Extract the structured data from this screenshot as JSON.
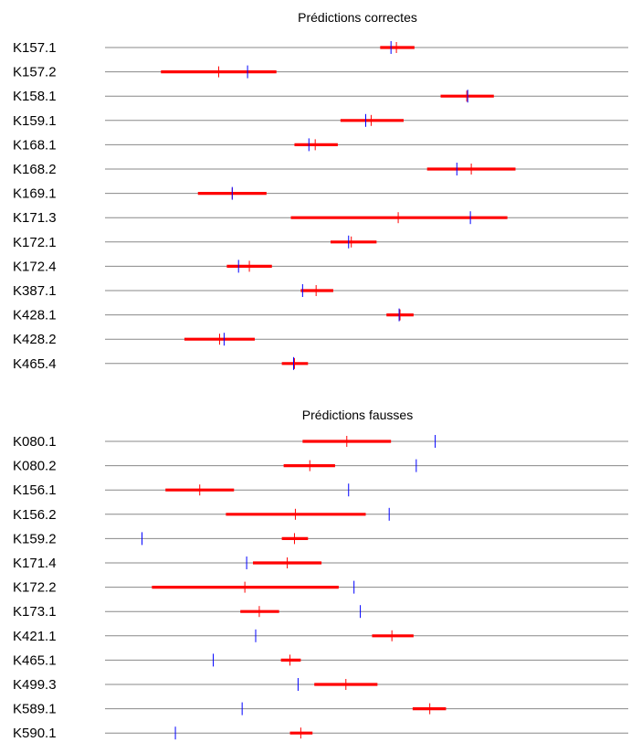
{
  "colors": {
    "interval": "#ff0000",
    "estimate": "#ff0000",
    "observed": "#0000ff",
    "rule": "#888888"
  },
  "chart_data": [
    {
      "type": "interval",
      "title": "Prédictions correctes",
      "xlim": [
        0,
        580
      ],
      "rows": [
        {
          "label": "K157.1",
          "low": 305,
          "high": 343,
          "estimate": 323,
          "observed": 317
        },
        {
          "label": "K157.2",
          "low": 62,
          "high": 190,
          "estimate": 126,
          "observed": 158
        },
        {
          "label": "K158.1",
          "low": 372,
          "high": 431,
          "estimate": 401,
          "observed": 402
        },
        {
          "label": "K159.1",
          "low": 261,
          "high": 331,
          "estimate": 295,
          "observed": 289
        },
        {
          "label": "K168.1",
          "low": 210,
          "high": 258,
          "estimate": 233,
          "observed": 226
        },
        {
          "label": "K168.2",
          "low": 357,
          "high": 455,
          "estimate": 406,
          "observed": 390
        },
        {
          "label": "K169.1",
          "low": 103,
          "high": 179,
          "estimate": 141,
          "observed": 141
        },
        {
          "label": "K171.3",
          "low": 206,
          "high": 446,
          "estimate": 325,
          "observed": 405
        },
        {
          "label": "K172.1",
          "low": 250,
          "high": 301,
          "estimate": 273,
          "observed": 270
        },
        {
          "label": "K172.4",
          "low": 135,
          "high": 185,
          "estimate": 160,
          "observed": 148
        },
        {
          "label": "K387.1",
          "low": 217,
          "high": 253,
          "estimate": 234,
          "observed": 219
        },
        {
          "label": "K428.1",
          "low": 312,
          "high": 342,
          "estimate": 327,
          "observed": 326
        },
        {
          "label": "K428.2",
          "low": 88,
          "high": 166,
          "estimate": 127,
          "observed": 132
        },
        {
          "label": "K465.4",
          "low": 196,
          "high": 225,
          "estimate": 210,
          "observed": 209
        }
      ]
    },
    {
      "type": "interval",
      "title": "Prédictions fausses",
      "xlim": [
        0,
        580
      ],
      "rows": [
        {
          "label": "K080.1",
          "low": 219,
          "high": 317,
          "estimate": 268,
          "observed": 366
        },
        {
          "label": "K080.2",
          "low": 198,
          "high": 255,
          "estimate": 227,
          "observed": 345
        },
        {
          "label": "K156.1",
          "low": 67,
          "high": 143,
          "estimate": 105,
          "observed": 270
        },
        {
          "label": "K156.2",
          "low": 134,
          "high": 289,
          "estimate": 211,
          "observed": 315
        },
        {
          "label": "K159.2",
          "low": 196,
          "high": 225,
          "estimate": 210,
          "observed": 41
        },
        {
          "label": "K171.4",
          "low": 164,
          "high": 240,
          "estimate": 202,
          "observed": 157
        },
        {
          "label": "K172.2",
          "low": 52,
          "high": 259,
          "estimate": 155,
          "observed": 276
        },
        {
          "label": "K173.1",
          "low": 150,
          "high": 193,
          "estimate": 171,
          "observed": 283
        },
        {
          "label": "K421.1",
          "low": 296,
          "high": 342,
          "estimate": 318,
          "observed": 167
        },
        {
          "label": "K465.1",
          "low": 195,
          "high": 217,
          "estimate": 205,
          "observed": 120
        },
        {
          "label": "K499.3",
          "low": 232,
          "high": 302,
          "estimate": 267,
          "observed": 214
        },
        {
          "label": "K589.1",
          "low": 341,
          "high": 378,
          "estimate": 360,
          "observed": 152
        },
        {
          "label": "K590.1",
          "low": 205,
          "high": 230,
          "estimate": 217,
          "observed": 78
        }
      ]
    }
  ]
}
